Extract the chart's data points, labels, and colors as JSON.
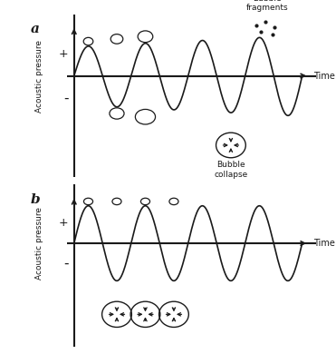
{
  "fig_width": 3.71,
  "fig_height": 3.9,
  "dpi": 100,
  "bg_color": "#ffffff",
  "line_color": "#1a1a1a",
  "text_color": "#1a1a1a",
  "panel_a_label": "a",
  "panel_b_label": "b",
  "ylabel": "Acoustic pressure",
  "time_label": "Time",
  "plus_label": "+",
  "minus_label": "-",
  "bubble_fragments_label": "Bubble\nfragments",
  "bubble_collapse_label": "Bubble\ncollapse",
  "wave_amp": 0.42,
  "n_cycles": 4
}
